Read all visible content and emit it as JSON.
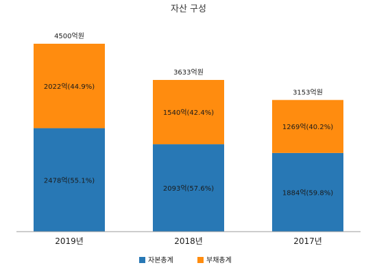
{
  "chart_data": {
    "type": "bar",
    "stacked": true,
    "title": "자산 구성",
    "categories": [
      "2019년",
      "2018년",
      "2017년"
    ],
    "ylim": [
      0,
      4500
    ],
    "grid": false,
    "legend_position": "bottom",
    "series": [
      {
        "name": "자본총계",
        "color": "#2878b5",
        "values": [
          2478,
          2093,
          1884
        ],
        "labels": [
          "2478억(55.1%)",
          "2093억(57.6%)",
          "1884억(59.8%)"
        ]
      },
      {
        "name": "부채총계",
        "color": "#ff8c0f",
        "values": [
          2022,
          1540,
          1269
        ],
        "labels": [
          "2022억(44.9%)",
          "1540억(42.4%)",
          "1269억(40.2%)"
        ]
      }
    ],
    "totals": [
      4500,
      3633,
      3153
    ],
    "total_labels": [
      "4500억원",
      "3633억원",
      "3153억원"
    ]
  }
}
